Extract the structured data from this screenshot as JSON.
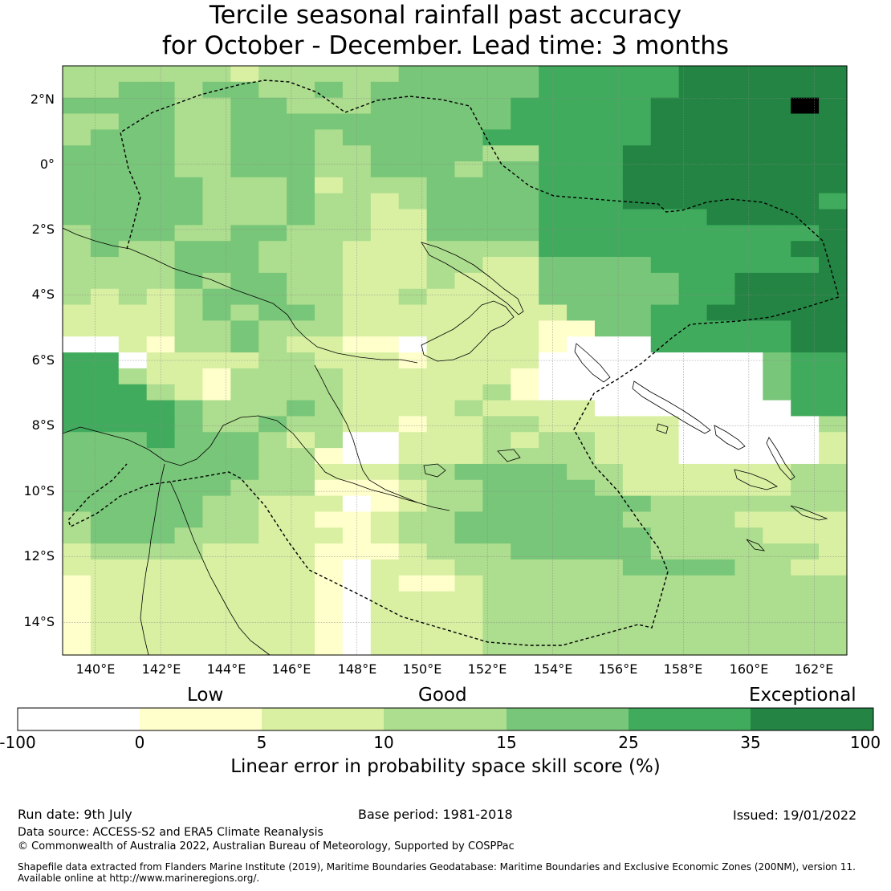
{
  "title": {
    "line1": "Tercile seasonal rainfall past accuracy",
    "line2": "for October - December. Lead time: 3 months"
  },
  "map": {
    "lon_labels": [
      "140°E",
      "142°E",
      "144°E",
      "146°E",
      "148°E",
      "150°E",
      "152°E",
      "154°E",
      "156°E",
      "158°E",
      "160°E",
      "162°E"
    ],
    "lat_labels": [
      "2°N",
      "0°",
      "2°S",
      "4°S",
      "6°S",
      "8°S",
      "10°S",
      "12°S",
      "14°S"
    ],
    "lon_range": [
      139,
      163
    ],
    "lat_range": [
      -15,
      3
    ]
  },
  "legend": {
    "categories": [
      "Low",
      "Good",
      "Exceptional"
    ],
    "ticks": [
      "-100",
      "0",
      "5",
      "10",
      "15",
      "25",
      "35",
      "100"
    ],
    "colors": [
      "#ffffff",
      "#ffffcc",
      "#d9f0a3",
      "#addd8e",
      "#78c679",
      "#41ab5d",
      "#238443"
    ],
    "axis_label": "Linear error in probability space skill score (%)"
  },
  "footer": {
    "run_date": "Run date: 9th July",
    "base_period": "Base period: 1981-2018",
    "issued": "Issued: 19/01/2022",
    "data_source": "Data source: ACCESS-S2 and ERA5 Climate Reanalysis",
    "copyright": "© Commonwealth of Australia 2022, Australian Bureau of Meteorology, Supported by COSPPac",
    "shapefile1": "Shapefile data extracted from Flanders Marine Institute (2019), Maritime Boundaries Geodatabase: Maritime Boundaries and Exclusive Economic Zones (200NM), version 11.",
    "shapefile2": "Available online at http://www.marineregions.org/."
  }
}
